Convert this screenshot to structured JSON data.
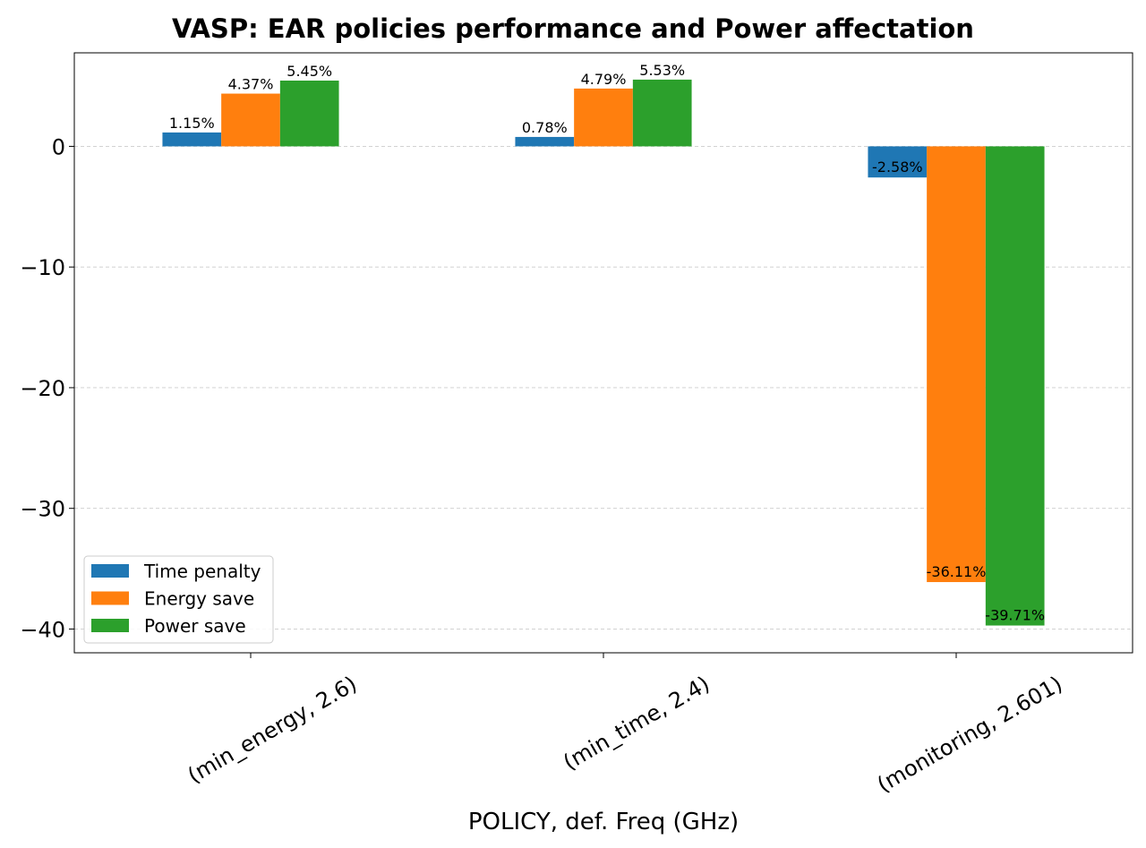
{
  "chart_data": {
    "type": "bar",
    "title": "VASP: EAR policies performance and Power affectation",
    "xlabel": "POLICY, def. Freq (GHz)",
    "ylabel": "",
    "categories": [
      "(min_energy, 2.6)",
      "(min_time, 2.4)",
      "(monitoring, 2.601)"
    ],
    "series": [
      {
        "name": "Time penalty",
        "color": "#1f77b4",
        "values": [
          1.15,
          0.78,
          -2.58
        ],
        "labels": [
          "1.15%",
          "0.78%",
          "-2.58%"
        ]
      },
      {
        "name": "Energy save",
        "color": "#ff7f0e",
        "values": [
          4.37,
          4.79,
          -36.11
        ],
        "labels": [
          "4.37%",
          "4.79%",
          "-36.11%"
        ]
      },
      {
        "name": "Power save",
        "color": "#2ca02c",
        "values": [
          5.45,
          5.53,
          -39.71
        ],
        "labels": [
          "5.45%",
          "5.53%",
          "-39.71%"
        ]
      }
    ],
    "ylim": [
      -41.97,
      7.75
    ],
    "yticks": [
      0,
      -10,
      -20,
      -30,
      -40
    ],
    "ytick_labels": [
      "0",
      "−10",
      "−20",
      "−30",
      "−40"
    ],
    "grid": "horizontal dashed",
    "legend_position": "lower-left"
  }
}
